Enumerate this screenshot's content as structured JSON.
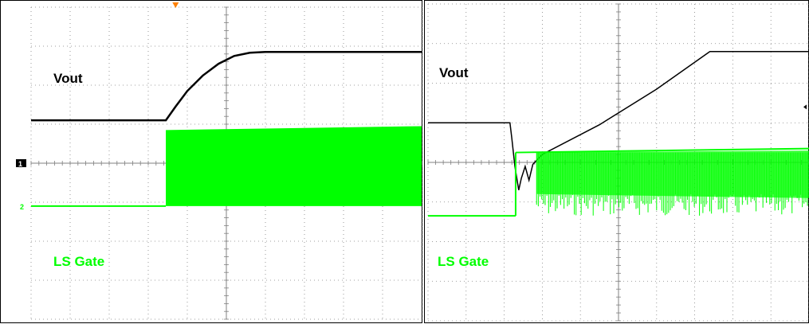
{
  "colors": {
    "vout": "#000000",
    "gate": "#00ff00",
    "grid": "#808080",
    "marker": "#ff8000"
  },
  "chart_data": [
    {
      "type": "line",
      "series": [
        {
          "name": "Vout",
          "color": "#000000",
          "points": [
            [
              0,
              1.1
            ],
            [
              3.45,
              1.1
            ],
            [
              3.7,
              1.45
            ],
            [
              4.0,
              1.85
            ],
            [
              4.4,
              2.25
            ],
            [
              4.8,
              2.55
            ],
            [
              5.2,
              2.75
            ],
            [
              5.6,
              2.83
            ],
            [
              6.0,
              2.85
            ],
            [
              10,
              2.85
            ]
          ]
        },
        {
          "name": "LS Gate",
          "color": "#00ff00",
          "low": -1.1,
          "on_time": 3.45,
          "high_start": 0.85,
          "high_end": 0.95
        }
      ],
      "channel_markers": [
        "1",
        "2"
      ]
    },
    {
      "type": "line",
      "series": [
        {
          "name": "Vout",
          "color": "#000000",
          "points": [
            [
              0,
              1.0
            ],
            [
              2.15,
              1.0
            ],
            [
              2.2,
              0.6
            ],
            [
              2.28,
              -0.1
            ],
            [
              2.38,
              -0.7
            ],
            [
              2.45,
              -0.4
            ],
            [
              2.55,
              -0.1
            ],
            [
              2.65,
              -0.45
            ],
            [
              2.75,
              -0.05
            ],
            [
              2.85,
              0.05
            ],
            [
              3.0,
              0.2
            ],
            [
              4.5,
              0.95
            ],
            [
              6.0,
              1.85
            ],
            [
              7.4,
              2.8
            ],
            [
              10,
              2.8
            ]
          ]
        },
        {
          "name": "LS Gate",
          "color": "#00ff00",
          "low": -1.35,
          "on_time": 2.3,
          "high_start": 0.25,
          "high_end": 0.35
        }
      ],
      "channel_markers": []
    }
  ]
}
